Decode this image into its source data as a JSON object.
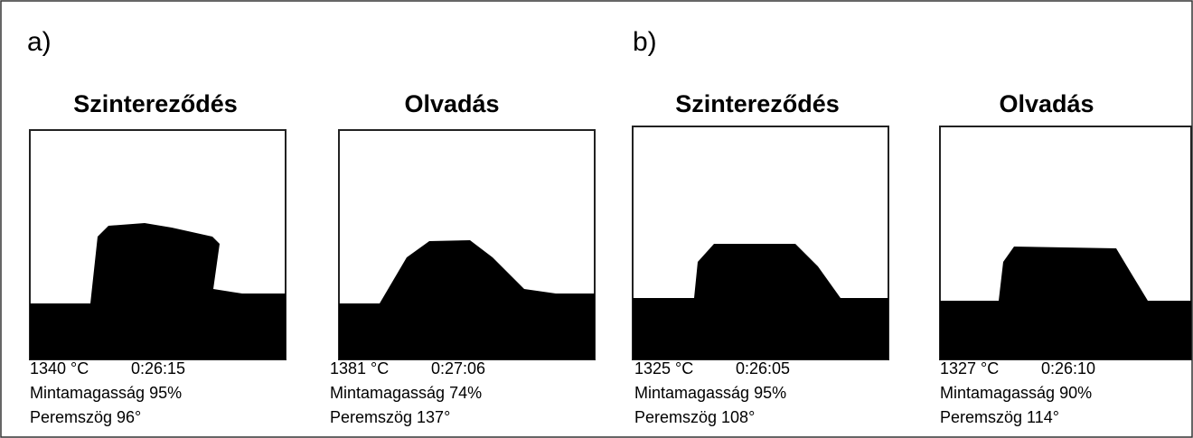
{
  "panels": [
    {
      "label": "a)",
      "images": [
        {
          "title": "Szintereződés",
          "temperature": "1340 °C",
          "time": "0:26:15",
          "height": "Mintamagasság 95%",
          "angle": "Peremszög 96°"
        },
        {
          "title": "Olvadás",
          "temperature": "1381 °C",
          "time": "0:27:06",
          "height": "Mintamagasság 74%",
          "angle": "Peremszög 137°"
        }
      ]
    },
    {
      "label": "b)",
      "images": [
        {
          "title": "Szintereződés",
          "temperature": "1325 °C",
          "time": "0:26:05",
          "height": "Mintamagasság 95%",
          "angle": "Peremszög 108°"
        },
        {
          "title": "Olvadás",
          "temperature": "1327 °C",
          "time": "0:26:10",
          "height": "Mintamagasság 90%",
          "angle": "Peremszög 114°"
        }
      ]
    }
  ]
}
